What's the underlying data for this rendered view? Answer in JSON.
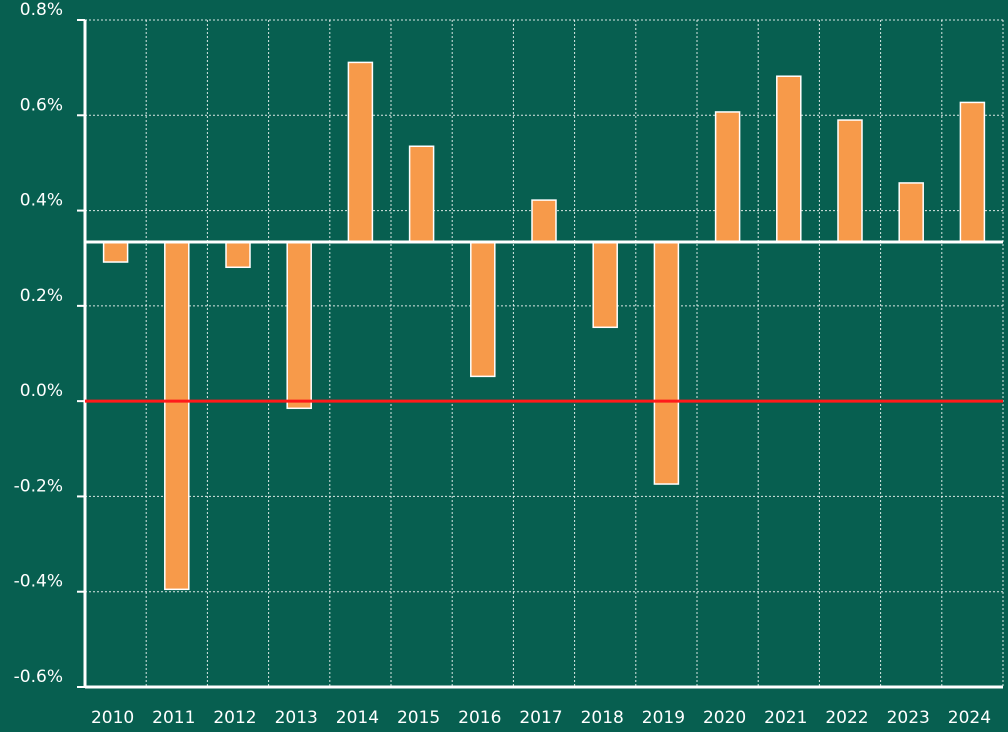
{
  "chart_data": {
    "type": "bar",
    "categories": [
      "2010",
      "2011",
      "2012",
      "2013",
      "2014",
      "2015",
      "2016",
      "2017",
      "2018",
      "2019",
      "2020",
      "2021",
      "2022",
      "2023",
      "2024"
    ],
    "values": [
      0.292,
      -0.395,
      0.281,
      -0.015,
      0.711,
      0.535,
      0.052,
      0.422,
      0.155,
      -0.174,
      0.607,
      0.682,
      0.59,
      0.458,
      0.627
    ],
    "baseline": 0.334,
    "reference_line": 0,
    "color": "#f79a4a",
    "reference_color": "#ff1a1a",
    "ylim": [
      -0.6,
      0.8
    ],
    "yticks": [
      {
        "value": -0.6,
        "label": "-0.6%"
      },
      {
        "value": -0.4,
        "label": "-0.4%"
      },
      {
        "value": -0.2,
        "label": "-0.2%"
      },
      {
        "value": 0.0,
        "label": "0.0%"
      },
      {
        "value": 0.2,
        "label": "0.2%"
      },
      {
        "value": 0.4,
        "label": "0.4%"
      },
      {
        "value": 0.6,
        "label": "0.6%"
      },
      {
        "value": 0.8,
        "label": "0.8%"
      }
    ],
    "grid": true
  }
}
